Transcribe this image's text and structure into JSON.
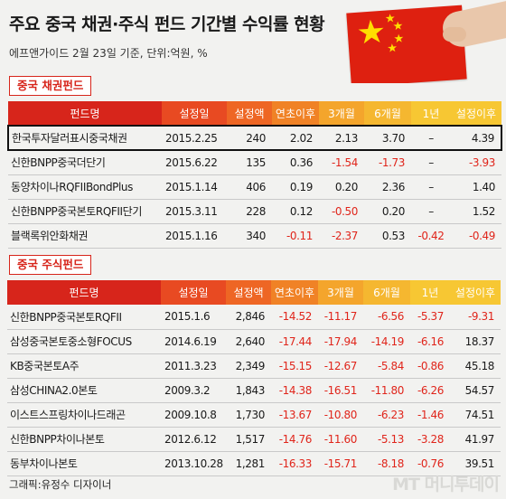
{
  "title": "주요 중국 채권·주식 펀드 기간별 수익률 현황",
  "subtitle": "에프앤가이드 2월 23일 기준, 단위:억원, %",
  "columns": [
    "펀드명",
    "설정일",
    "설정액",
    "연초이후",
    "3개월",
    "6개월",
    "1년",
    "설정이후"
  ],
  "bond_section": {
    "label": "중국 채권펀드",
    "rows": [
      {
        "name": "한국투자달러표시중국채권",
        "date": "2015.2.25",
        "amount": "240",
        "ytd": "2.02",
        "m3": "2.13",
        "m6": "3.70",
        "y1": "–",
        "since": "4.39"
      },
      {
        "name": "신한BNPP중국더단기",
        "date": "2015.6.22",
        "amount": "135",
        "ytd": "0.36",
        "m3": "-1.54",
        "m6": "-1.73",
        "y1": "–",
        "since": "-3.93"
      },
      {
        "name": "동양차이나RQFIIBondPlus",
        "date": "2015.1.14",
        "amount": "406",
        "ytd": "0.19",
        "m3": "0.20",
        "m6": "2.36",
        "y1": "–",
        "since": "1.40"
      },
      {
        "name": "신한BNPP중국본토RQFII단기",
        "date": "2015.3.11",
        "amount": "228",
        "ytd": "0.12",
        "m3": "-0.50",
        "m6": "0.20",
        "y1": "–",
        "since": "1.52"
      },
      {
        "name": "블랙록위안화채권",
        "date": "2015.1.16",
        "amount": "340",
        "ytd": "-0.11",
        "m3": "-2.37",
        "m6": "0.53",
        "y1": "-0.42",
        "since": "-0.49"
      }
    ]
  },
  "stock_section": {
    "label": "중국 주식펀드",
    "rows": [
      {
        "name": "신한BNPP중국본토RQFII",
        "date": "2015.1.6",
        "amount": "2,846",
        "ytd": "-14.52",
        "m3": "-11.17",
        "m6": "-6.56",
        "y1": "-5.37",
        "since": "-9.31"
      },
      {
        "name": "삼성중국본토중소형FOCUS",
        "date": "2014.6.19",
        "amount": "2,640",
        "ytd": "-17.44",
        "m3": "-17.94",
        "m6": "-14.19",
        "y1": "-6.16",
        "since": "18.37"
      },
      {
        "name": "KB중국본토A주",
        "date": "2011.3.23",
        "amount": "2,349",
        "ytd": "-15.15",
        "m3": "-12.67",
        "m6": "-5.84",
        "y1": "-0.86",
        "since": "45.18"
      },
      {
        "name": "삼성CHINA2.0본토",
        "date": "2009.3.2",
        "amount": "1,843",
        "ytd": "-14.38",
        "m3": "-16.51",
        "m6": "-11.80",
        "y1": "-6.26",
        "since": "54.57"
      },
      {
        "name": "이스트스프링차이나드래곤",
        "date": "2009.10.8",
        "amount": "1,730",
        "ytd": "-13.67",
        "m3": "-10.80",
        "m6": "-6.23",
        "y1": "-1.46",
        "since": "74.51"
      },
      {
        "name": "신한BNPP차이나본토",
        "date": "2012.6.12",
        "amount": "1,517",
        "ytd": "-14.76",
        "m3": "-11.60",
        "m6": "-5.13",
        "y1": "-3.28",
        "since": "41.97"
      },
      {
        "name": "동부차이나본토",
        "date": "2013.10.28",
        "amount": "1,281",
        "ytd": "-16.33",
        "m3": "-15.71",
        "m6": "-8.18",
        "y1": "-0.76",
        "since": "39.51"
      }
    ]
  },
  "credit": "그래픽:유정수 디자이너",
  "logo_text": "MT 머니투데이",
  "colors": {
    "accent": "#d7251b",
    "negative": "#e0251b"
  },
  "icons": {
    "flag": "china-flag-icon",
    "hand": "hand-holding-flag-icon"
  }
}
